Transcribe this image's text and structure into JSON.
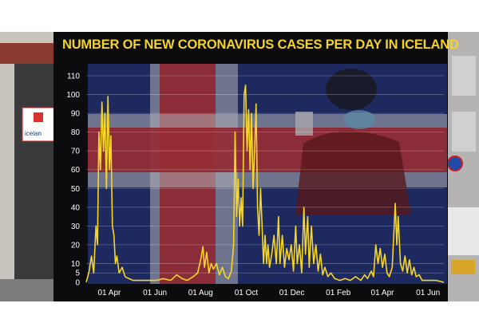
{
  "sign": {
    "text": "icelan"
  },
  "colors": {
    "line": "#f5d626",
    "title": "#f2d32c",
    "panel": "#0c0c0e",
    "flag_blue": "#2a3a86",
    "flag_red": "#b3202a",
    "flag_white": "#d8d8de"
  },
  "chart_data": {
    "type": "line",
    "title": "NUMBER OF NEW CORONAVIRUS CASES PER DAY IN ICELAND",
    "xlabel": "",
    "ylabel": "",
    "ylim": [
      0,
      110
    ],
    "yticks": [
      "0",
      "5",
      "10",
      "20",
      "30",
      "40",
      "50",
      "60",
      "70",
      "80",
      "90",
      "100",
      "110"
    ],
    "xtick_labels": [
      "01 Apr",
      "01 Jun",
      "01 Aug",
      "01 Oct",
      "01 Dec",
      "01 Feb",
      "01 Apr",
      "01 Jun"
    ],
    "xtick_dates": [
      "2020-04-01",
      "2020-06-01",
      "2020-08-01",
      "2020-10-01",
      "2020-12-01",
      "2021-02-01",
      "2021-04-01",
      "2021-06-01"
    ],
    "xlim": [
      "2020-02-28",
      "2021-06-20"
    ],
    "grid": true,
    "series": [
      {
        "points": [
          [
            "2020-02-28",
            0
          ],
          [
            "2020-03-03",
            6
          ],
          [
            "2020-03-06",
            14
          ],
          [
            "2020-03-09",
            5
          ],
          [
            "2020-03-12",
            30
          ],
          [
            "2020-03-14",
            20
          ],
          [
            "2020-03-16",
            80
          ],
          [
            "2020-03-18",
            60
          ],
          [
            "2020-03-20",
            96
          ],
          [
            "2020-03-22",
            70
          ],
          [
            "2020-03-24",
            90
          ],
          [
            "2020-03-26",
            50
          ],
          [
            "2020-03-28",
            99
          ],
          [
            "2020-03-30",
            60
          ],
          [
            "2020-04-01",
            78
          ],
          [
            "2020-04-03",
            30
          ],
          [
            "2020-04-05",
            25
          ],
          [
            "2020-04-07",
            10
          ],
          [
            "2020-04-09",
            14
          ],
          [
            "2020-04-12",
            5
          ],
          [
            "2020-04-16",
            8
          ],
          [
            "2020-04-20",
            3
          ],
          [
            "2020-04-25",
            2
          ],
          [
            "2020-05-01",
            1
          ],
          [
            "2020-05-10",
            1
          ],
          [
            "2020-05-20",
            1
          ],
          [
            "2020-06-01",
            1
          ],
          [
            "2020-06-10",
            2
          ],
          [
            "2020-06-20",
            1
          ],
          [
            "2020-06-28",
            4
          ],
          [
            "2020-07-05",
            2
          ],
          [
            "2020-07-12",
            1
          ],
          [
            "2020-07-20",
            3
          ],
          [
            "2020-07-26",
            5
          ],
          [
            "2020-07-30",
            12
          ],
          [
            "2020-08-02",
            19
          ],
          [
            "2020-08-04",
            8
          ],
          [
            "2020-08-07",
            16
          ],
          [
            "2020-08-10",
            5
          ],
          [
            "2020-08-13",
            10
          ],
          [
            "2020-08-16",
            7
          ],
          [
            "2020-08-20",
            10
          ],
          [
            "2020-08-24",
            4
          ],
          [
            "2020-08-28",
            8
          ],
          [
            "2020-09-01",
            3
          ],
          [
            "2020-09-05",
            2
          ],
          [
            "2020-09-09",
            6
          ],
          [
            "2020-09-12",
            20
          ],
          [
            "2020-09-14",
            80
          ],
          [
            "2020-09-16",
            35
          ],
          [
            "2020-09-18",
            55
          ],
          [
            "2020-09-20",
            30
          ],
          [
            "2020-09-22",
            45
          ],
          [
            "2020-09-24",
            30
          ],
          [
            "2020-09-26",
            100
          ],
          [
            "2020-09-28",
            105
          ],
          [
            "2020-09-30",
            70
          ],
          [
            "2020-10-02",
            92
          ],
          [
            "2020-10-04",
            60
          ],
          [
            "2020-10-06",
            90
          ],
          [
            "2020-10-08",
            50
          ],
          [
            "2020-10-10",
            70
          ],
          [
            "2020-10-12",
            95
          ],
          [
            "2020-10-14",
            40
          ],
          [
            "2020-10-16",
            25
          ],
          [
            "2020-10-18",
            50
          ],
          [
            "2020-10-20",
            30
          ],
          [
            "2020-10-22",
            10
          ],
          [
            "2020-10-24",
            25
          ],
          [
            "2020-10-26",
            10
          ],
          [
            "2020-10-28",
            20
          ],
          [
            "2020-10-30",
            8
          ],
          [
            "2020-11-02",
            15
          ],
          [
            "2020-11-05",
            25
          ],
          [
            "2020-11-08",
            10
          ],
          [
            "2020-11-11",
            35
          ],
          [
            "2020-11-13",
            10
          ],
          [
            "2020-11-16",
            25
          ],
          [
            "2020-11-19",
            8
          ],
          [
            "2020-11-22",
            18
          ],
          [
            "2020-11-25",
            12
          ],
          [
            "2020-11-28",
            20
          ],
          [
            "2020-12-01",
            6
          ],
          [
            "2020-12-04",
            30
          ],
          [
            "2020-12-06",
            10
          ],
          [
            "2020-12-09",
            20
          ],
          [
            "2020-12-12",
            5
          ],
          [
            "2020-12-15",
            40
          ],
          [
            "2020-12-17",
            15
          ],
          [
            "2020-12-20",
            35
          ],
          [
            "2020-12-22",
            8
          ],
          [
            "2020-12-25",
            30
          ],
          [
            "2020-12-28",
            10
          ],
          [
            "2020-12-31",
            20
          ],
          [
            "2021-01-03",
            6
          ],
          [
            "2021-01-06",
            15
          ],
          [
            "2021-01-09",
            4
          ],
          [
            "2021-01-12",
            8
          ],
          [
            "2021-01-16",
            3
          ],
          [
            "2021-01-20",
            5
          ],
          [
            "2021-01-25",
            2
          ],
          [
            "2021-02-01",
            1
          ],
          [
            "2021-02-08",
            2
          ],
          [
            "2021-02-15",
            1
          ],
          [
            "2021-02-22",
            3
          ],
          [
            "2021-03-01",
            1
          ],
          [
            "2021-03-06",
            4
          ],
          [
            "2021-03-10",
            2
          ],
          [
            "2021-03-15",
            6
          ],
          [
            "2021-03-18",
            3
          ],
          [
            "2021-03-21",
            20
          ],
          [
            "2021-03-24",
            10
          ],
          [
            "2021-03-27",
            18
          ],
          [
            "2021-03-30",
            8
          ],
          [
            "2021-04-02",
            15
          ],
          [
            "2021-04-05",
            5
          ],
          [
            "2021-04-08",
            3
          ],
          [
            "2021-04-12",
            8
          ],
          [
            "2021-04-16",
            42
          ],
          [
            "2021-04-18",
            20
          ],
          [
            "2021-04-20",
            35
          ],
          [
            "2021-04-23",
            10
          ],
          [
            "2021-04-26",
            6
          ],
          [
            "2021-04-29",
            14
          ],
          [
            "2021-05-02",
            5
          ],
          [
            "2021-05-05",
            12
          ],
          [
            "2021-05-08",
            4
          ],
          [
            "2021-05-11",
            8
          ],
          [
            "2021-05-14",
            3
          ],
          [
            "2021-05-18",
            4
          ],
          [
            "2021-05-22",
            1
          ],
          [
            "2021-06-01",
            1
          ],
          [
            "2021-06-10",
            1
          ],
          [
            "2021-06-20",
            0
          ]
        ]
      }
    ]
  }
}
